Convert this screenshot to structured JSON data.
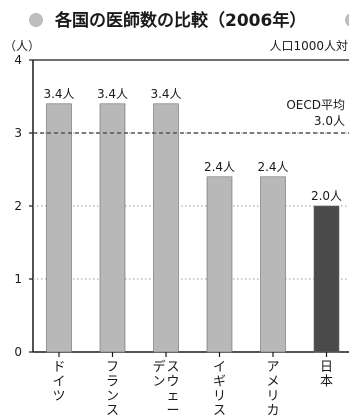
{
  "chart_data": {
    "type": "bar",
    "title": "各国の医師数の比較（2006年）",
    "ylabel": "（人）",
    "unit_note": "人口1000人対",
    "categories": [
      "ドイツ",
      "フランス",
      "スウェーデン",
      "イギリス",
      "アメリカ",
      "日本"
    ],
    "category_lines": [
      [
        "ドイツ"
      ],
      [
        "フランス"
      ],
      [
        "スウェー",
        "デン"
      ],
      [
        "イギリス"
      ],
      [
        "アメリカ"
      ],
      [
        "日本"
      ]
    ],
    "values": [
      3.4,
      3.4,
      3.4,
      2.4,
      2.4,
      2.0
    ],
    "value_labels": [
      "3.4人",
      "3.4人",
      "3.4人",
      "2.4人",
      "2.4人",
      "2.0人"
    ],
    "ylim": [
      0,
      4
    ],
    "yticks": [
      "0",
      "1",
      "2",
      "3",
      "4"
    ],
    "reference_line": {
      "value": 3.0,
      "label_line1": "OECD平均",
      "label_line2": "3.0人"
    },
    "grid": true,
    "colors": {
      "bar": "#b8b8b8",
      "highlight_bar": "#4a4a4a",
      "frame": "#1a1a1a",
      "grid": "#9a9a9a",
      "reference": "#555555",
      "title_bullet": "#bdbdbd"
    }
  }
}
